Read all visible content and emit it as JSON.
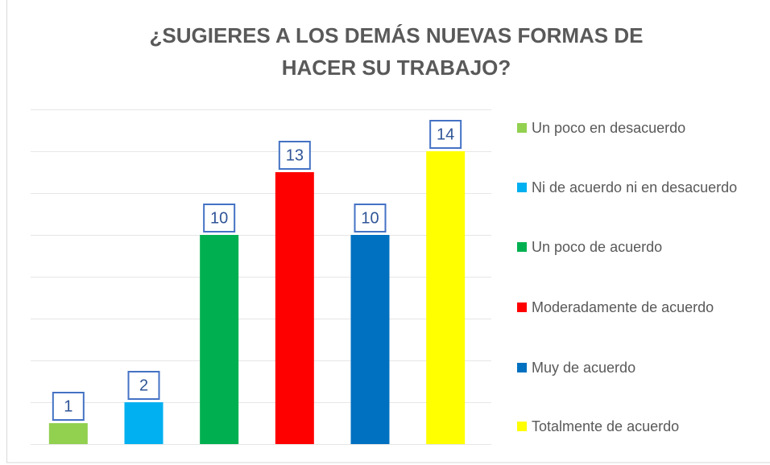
{
  "chart_data": {
    "type": "bar",
    "title": "¿SUGIERES A LOS DEMÁS NUEVAS FORMAS DE HACER SU TRABAJO?",
    "categories": [
      "Un poco en desacuerdo",
      "Ni de acuerdo ni en desacuerdo",
      "Un poco de acuerdo",
      "Moderadamente de acuerdo",
      "Muy de acuerdo",
      "Totalmente de acuerdo"
    ],
    "values": [
      1,
      2,
      10,
      13,
      10,
      14
    ],
    "colors": [
      "#92d050",
      "#00b0f0",
      "#00b050",
      "#ff0000",
      "#0070c0",
      "#ffff00"
    ],
    "ylim": [
      0,
      16
    ],
    "yticks": [
      0,
      2,
      4,
      6,
      8,
      10,
      12,
      14,
      16
    ],
    "grid": true,
    "legend": "right"
  }
}
